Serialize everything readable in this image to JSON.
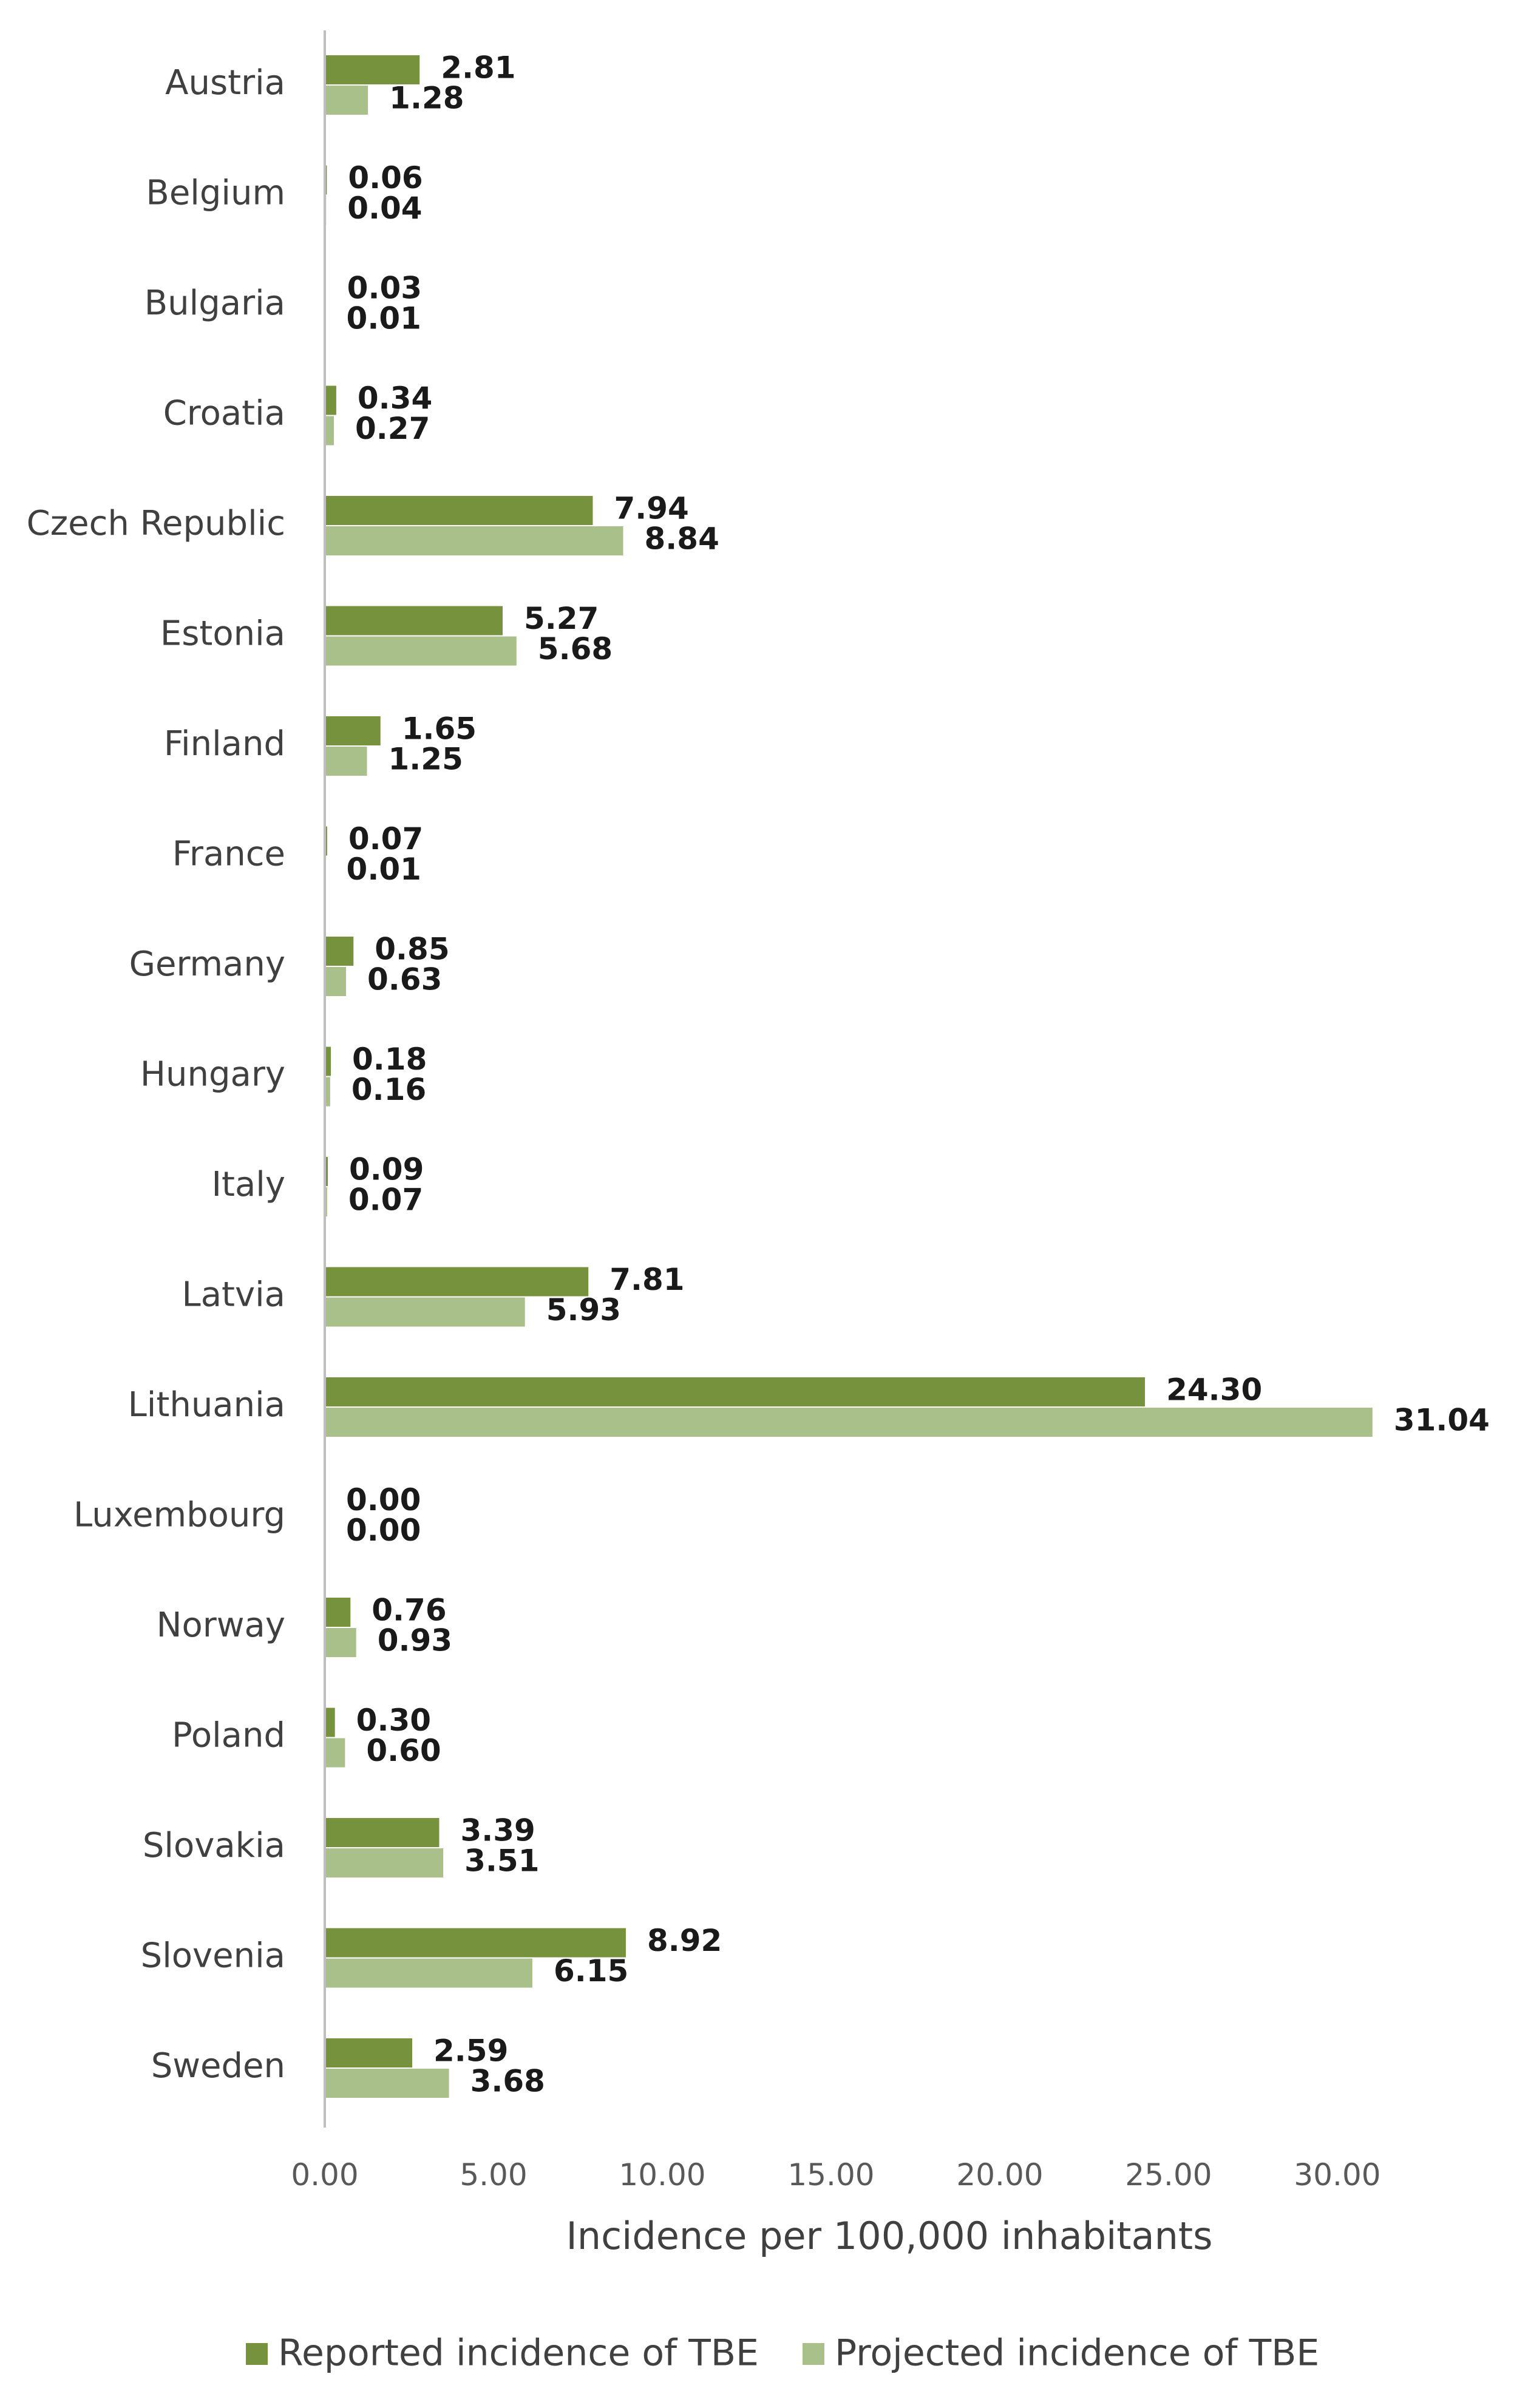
{
  "chart_data": {
    "type": "bar",
    "orientation": "horizontal",
    "categories": [
      "Austria",
      "Belgium",
      "Bulgaria",
      "Croatia",
      "Czech Republic",
      "Estonia",
      "Finland",
      "France",
      "Germany",
      "Hungary",
      "Italy",
      "Latvia",
      "Lithuania",
      "Luxembourg",
      "Norway",
      "Poland",
      "Slovakia",
      "Slovenia",
      "Sweden"
    ],
    "series": [
      {
        "name": "Reported incidence of TBE",
        "color": "#76923c",
        "values": [
          2.81,
          0.06,
          0.03,
          0.34,
          7.94,
          5.27,
          1.65,
          0.07,
          0.85,
          0.18,
          0.09,
          7.81,
          24.3,
          0.0,
          0.76,
          0.3,
          3.39,
          8.92,
          2.59
        ],
        "labels": [
          "2.81",
          "0.06",
          "0.03",
          "0.34",
          "7.94",
          "5.27",
          "1.65",
          "0.07",
          "0.85",
          "0.18",
          "0.09",
          "7.81",
          "24.30",
          "0.00",
          "0.76",
          "0.30",
          "3.39",
          "8.92",
          "2.59"
        ]
      },
      {
        "name": "Projected incidence of TBE",
        "color": "#a9c08a",
        "values": [
          1.28,
          0.04,
          0.01,
          0.27,
          8.84,
          5.68,
          1.25,
          0.01,
          0.63,
          0.16,
          0.07,
          5.93,
          31.04,
          0.0,
          0.93,
          0.6,
          3.51,
          6.15,
          3.68
        ],
        "labels": [
          "1.28",
          "0.04",
          "0.01",
          "0.27",
          "8.84",
          "5.68",
          "1.25",
          "0.01",
          "0.63",
          "0.16",
          "0.07",
          "5.93",
          "31.04",
          "0.00",
          "0.93",
          "0.60",
          "3.51",
          "6.15",
          "3.68"
        ]
      }
    ],
    "xlabel": "Incidence per 100,000 inhabitants",
    "ylabel": "",
    "xlim": [
      0,
      31.04
    ],
    "xticks": [
      0,
      5,
      10,
      15,
      20,
      25,
      30
    ],
    "xtick_labels": [
      "0.00",
      "5.00",
      "10.00",
      "15.00",
      "20.00",
      "25.00",
      "30.00"
    ],
    "grid": false,
    "legend_position": "bottom"
  }
}
